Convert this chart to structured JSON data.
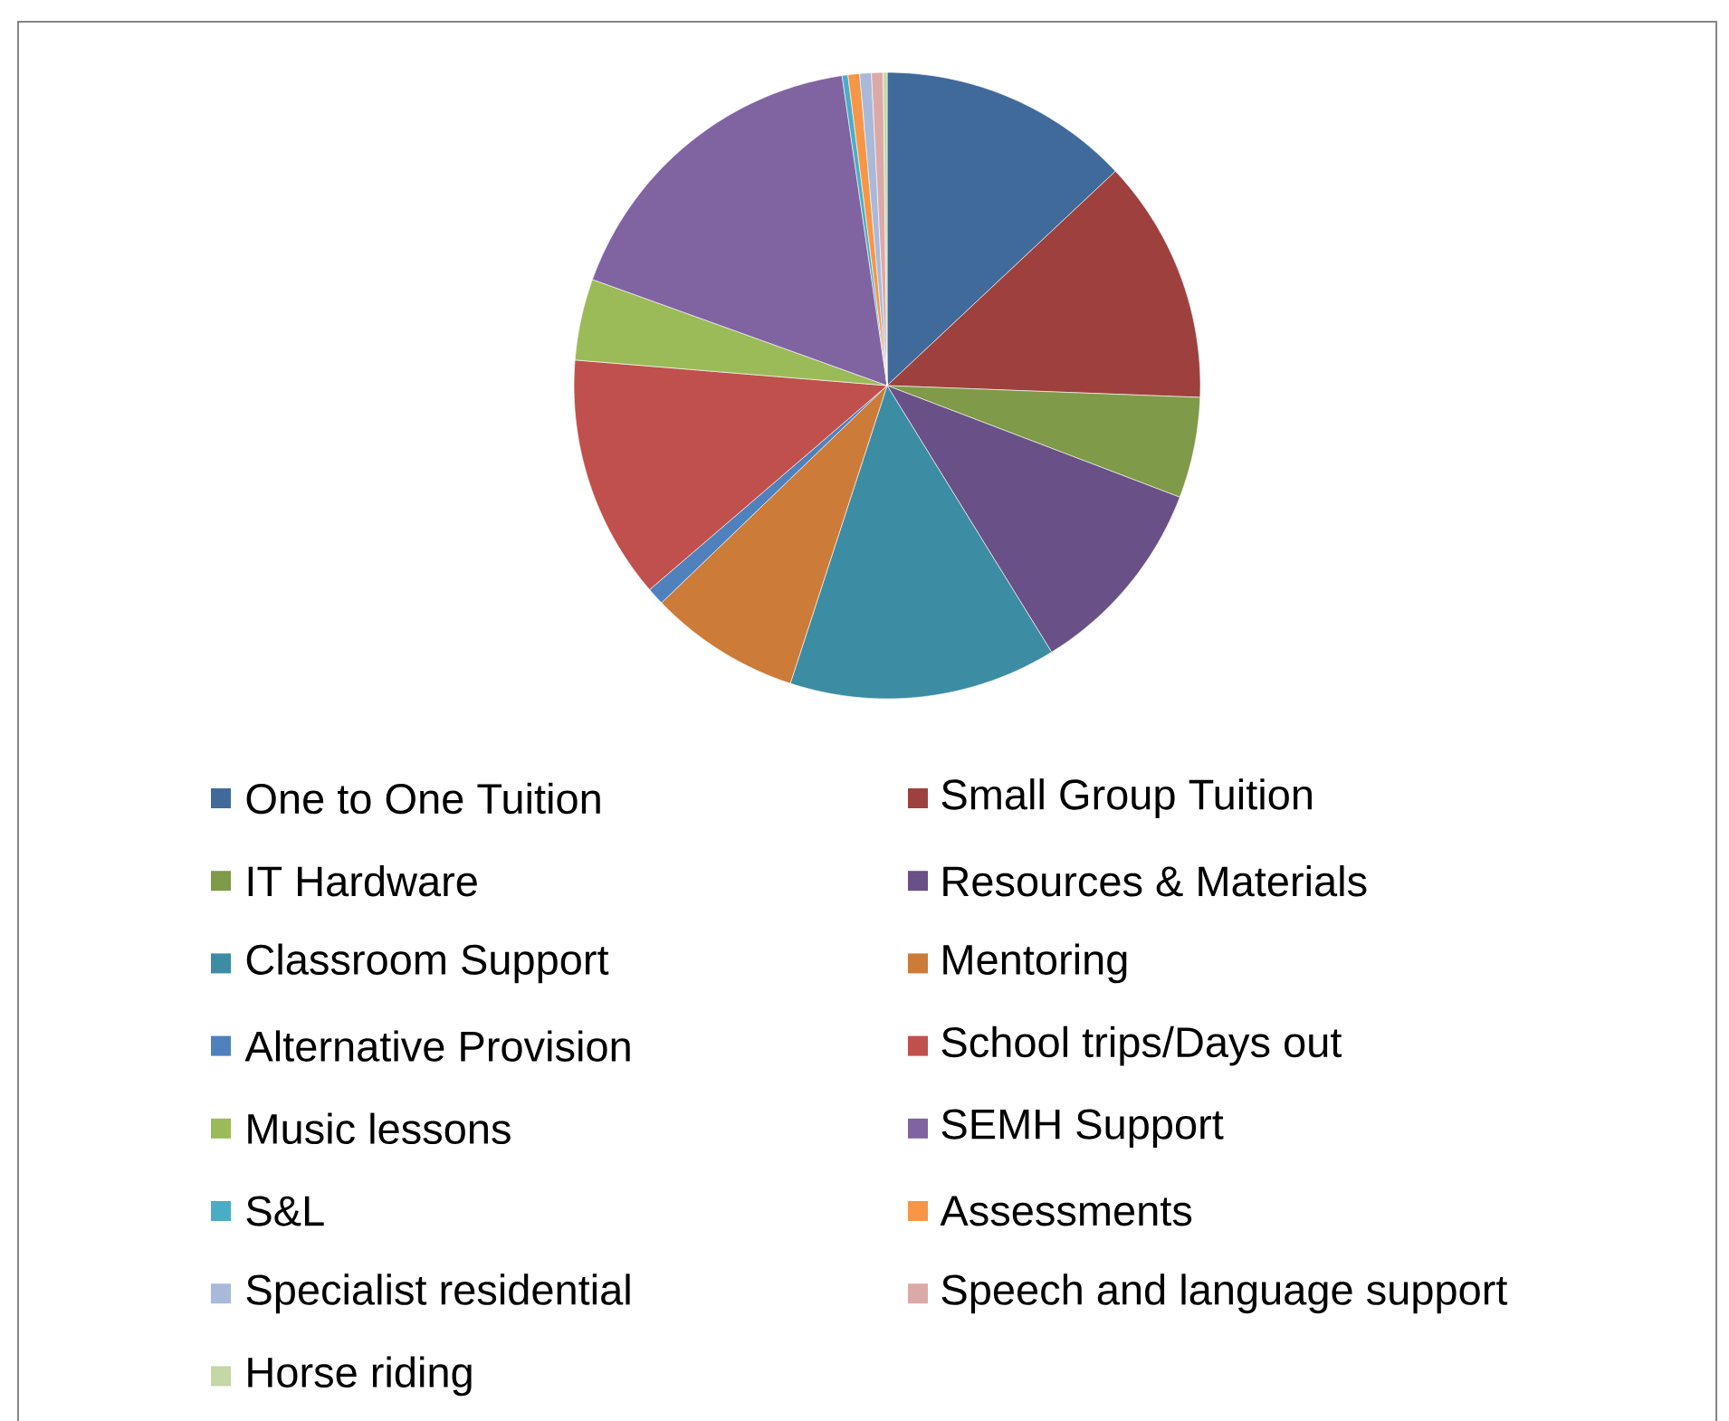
{
  "chart_data": {
    "type": "pie",
    "legend": "bottom",
    "categories": [
      "One to One Tuition",
      "Small Group Tuition",
      "IT Hardware",
      "Resources & Materials",
      "Classroom Support",
      "Mentoring",
      "Alternative Provision",
      "School trips/Days out",
      "Music lessons",
      "SEMH Support",
      "S&L",
      "Assessments",
      "Specialist residential",
      "Speech and language support",
      "Horse riding"
    ],
    "values": [
      13.0,
      12.6,
      5.2,
      10.4,
      13.8,
      7.8,
      0.9,
      12.6,
      4.2,
      17.2,
      0.3,
      0.6,
      0.6,
      0.6,
      0.2
    ],
    "colors": [
      "#406a9a",
      "#9e413e",
      "#7f9a48",
      "#695086",
      "#3c8ca3",
      "#cc7b38",
      "#4f81bd",
      "#c0504d",
      "#9bbb59",
      "#8064a2",
      "#4bacc6",
      "#f79646",
      "#a9b9da",
      "#dbaaa8",
      "#c4d7a4"
    ]
  }
}
